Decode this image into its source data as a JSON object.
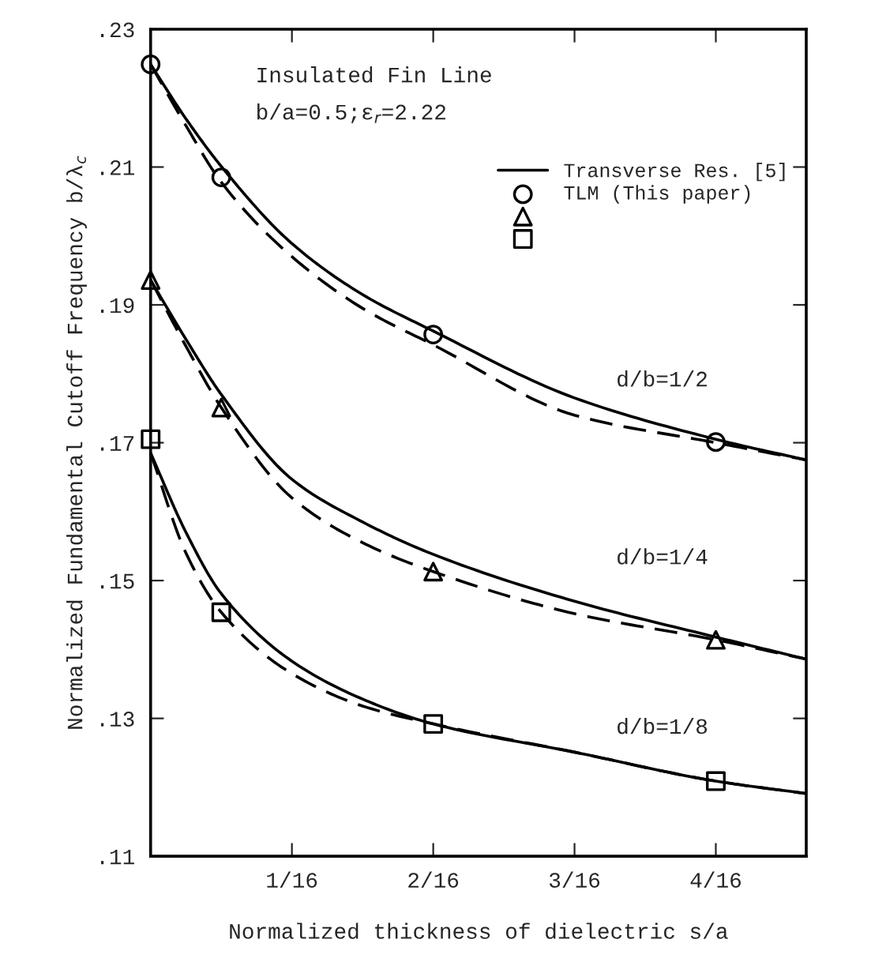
{
  "chart_data": {
    "type": "line",
    "title": "Insulated Fin Line",
    "subtitle": "b/a=0.5;ε$_{r}$=2.22",
    "xlabel": "Normalized thickness of dielectric s/a",
    "ylabel": "Normalized Fundamental Cutoff Frequency b/λ$_{c}$",
    "x": [
      0,
      0.015625,
      0.03125,
      0.0625,
      0.09375,
      0.125,
      0.1875,
      0.25,
      0.29
    ],
    "series": [
      {
        "name": "Transverse Res. [5]",
        "color": "#000000",
        "line_style": "solid",
        "marker": "none",
        "values": [
          0.2249,
          0.217,
          0.2101,
          0.1989,
          0.1915,
          0.1862,
          0.1765,
          0.1705,
          0.1675
        ]
      },
      {
        "color": "#000000",
        "line_style": "solid",
        "marker": "none",
        "values": [
          0.1936,
          0.185,
          0.177,
          0.1647,
          0.1585,
          0.1538,
          0.147,
          0.1418,
          0.1386
        ]
      },
      {
        "color": "#000000",
        "line_style": "solid",
        "marker": "none",
        "values": [
          0.1685,
          0.157,
          0.1481,
          0.1383,
          0.1328,
          0.1292,
          0.1251,
          0.1209,
          0.1191
        ]
      },
      {
        "color": "#000000",
        "line_style": "dashed",
        "marker": "none",
        "values": [
          0.2249,
          0.216,
          0.2078,
          0.197,
          0.1895,
          0.1842,
          0.174,
          0.17,
          0.1675
        ]
      },
      {
        "color": "#000000",
        "line_style": "dashed",
        "marker": "none",
        "values": [
          0.1936,
          0.184,
          0.1751,
          0.162,
          0.1555,
          0.1513,
          0.1452,
          0.1414,
          0.1386
        ]
      },
      {
        "color": "#000000",
        "line_style": "dashed",
        "marker": "none",
        "values": [
          0.1685,
          0.154,
          0.1454,
          0.1365,
          0.1318,
          0.1292,
          0.1251,
          0.1209,
          0.1191
        ]
      },
      {
        "name": "TLM (This paper)",
        "type": "scatter",
        "color": "#000000",
        "marker": "circle",
        "x": [
          0,
          0.03125,
          0.125,
          0.25
        ],
        "values": [
          0.2249,
          0.2085,
          0.1857,
          0.1701
        ]
      },
      {
        "type": "scatter",
        "color": "#000000",
        "marker": "triangle",
        "x": [
          0,
          0.03125,
          0.125,
          0.25
        ],
        "values": [
          0.1936,
          0.1751,
          0.1513,
          0.1414
        ]
      },
      {
        "type": "scatter",
        "color": "#000000",
        "marker": "square",
        "x": [
          0,
          0.03125,
          0.125,
          0.25
        ],
        "values": [
          0.1705,
          0.1454,
          0.1292,
          0.1209
        ]
      }
    ],
    "annotations": [
      "d/b=1/2",
      "d/b=1/4",
      "d/b=1/8"
    ],
    "xlim": [
      0,
      0.29
    ],
    "ylim": [
      0.11,
      0.23
    ],
    "xticks": [
      {
        "value": 0.0625,
        "label": "1/16"
      },
      {
        "value": 0.125,
        "label": "2/16"
      },
      {
        "value": 0.1875,
        "label": "3/16"
      },
      {
        "value": 0.25,
        "label": "4/16"
      }
    ],
    "yticks": [
      {
        "value": 0.11,
        "label": ".11"
      },
      {
        "value": 0.13,
        "label": ".13"
      },
      {
        "value": 0.15,
        "label": ".15"
      },
      {
        "value": 0.17,
        "label": ".17"
      },
      {
        "value": 0.19,
        "label": ".19"
      },
      {
        "value": 0.21,
        "label": ".21"
      },
      {
        "value": 0.23,
        "label": ".23"
      }
    ],
    "grid": false,
    "legend": "top right"
  }
}
